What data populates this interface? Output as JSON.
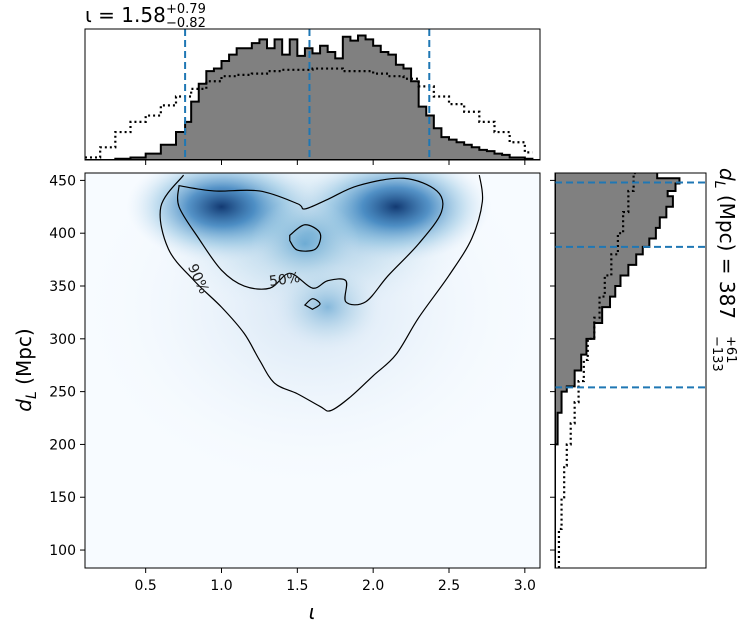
{
  "chart_data": {
    "type": "corner-plot",
    "colors": {
      "fill": "#808080",
      "dashed": "#1f77b4",
      "density": "#08306b",
      "outline": "#000000"
    },
    "top_panel": {
      "title": {
        "symbol": "ι",
        "eq": " = ",
        "value": "1.58",
        "upper": "+0.79",
        "lower": "−0.82"
      },
      "xlim": [
        0.1,
        3.1
      ],
      "quantiles": [
        0.76,
        1.58,
        2.37
      ],
      "hist_filled": [
        [
          0.1,
          0.0
        ],
        [
          0.2,
          0.0
        ],
        [
          0.3,
          0.01
        ],
        [
          0.4,
          0.02
        ],
        [
          0.5,
          0.05
        ],
        [
          0.6,
          0.12
        ],
        [
          0.7,
          0.22
        ],
        [
          0.76,
          0.3
        ],
        [
          0.8,
          0.46
        ],
        [
          0.85,
          0.6
        ],
        [
          0.9,
          0.7
        ],
        [
          0.95,
          0.72
        ],
        [
          1.0,
          0.78
        ],
        [
          1.05,
          0.83
        ],
        [
          1.1,
          0.88
        ],
        [
          1.15,
          0.88
        ],
        [
          1.2,
          0.92
        ],
        [
          1.25,
          0.95
        ],
        [
          1.3,
          0.88
        ],
        [
          1.35,
          0.95
        ],
        [
          1.4,
          0.83
        ],
        [
          1.45,
          0.95
        ],
        [
          1.5,
          0.82
        ],
        [
          1.55,
          0.88
        ],
        [
          1.6,
          0.84
        ],
        [
          1.65,
          0.9
        ],
        [
          1.7,
          0.85
        ],
        [
          1.75,
          0.8
        ],
        [
          1.8,
          0.97
        ],
        [
          1.85,
          0.94
        ],
        [
          1.9,
          0.98
        ],
        [
          1.95,
          0.95
        ],
        [
          2.0,
          0.9
        ],
        [
          2.05,
          0.85
        ],
        [
          2.1,
          0.83
        ],
        [
          2.15,
          0.75
        ],
        [
          2.2,
          0.72
        ],
        [
          2.25,
          0.62
        ],
        [
          2.3,
          0.42
        ],
        [
          2.35,
          0.35
        ],
        [
          2.4,
          0.25
        ],
        [
          2.45,
          0.18
        ],
        [
          2.5,
          0.16
        ],
        [
          2.55,
          0.14
        ],
        [
          2.6,
          0.12
        ],
        [
          2.65,
          0.1
        ],
        [
          2.7,
          0.08
        ],
        [
          2.75,
          0.07
        ],
        [
          2.8,
          0.05
        ],
        [
          2.85,
          0.04
        ],
        [
          2.9,
          0.02
        ],
        [
          2.95,
          0.02
        ],
        [
          3.0,
          0.01
        ],
        [
          3.05,
          0.0
        ]
      ],
      "hist_dotted": [
        [
          0.1,
          0.02
        ],
        [
          0.2,
          0.1
        ],
        [
          0.3,
          0.22
        ],
        [
          0.4,
          0.3
        ],
        [
          0.5,
          0.35
        ],
        [
          0.6,
          0.43
        ],
        [
          0.7,
          0.5
        ],
        [
          0.8,
          0.56
        ],
        [
          0.9,
          0.62
        ],
        [
          1.0,
          0.66
        ],
        [
          1.1,
          0.67
        ],
        [
          1.2,
          0.68
        ],
        [
          1.3,
          0.7
        ],
        [
          1.4,
          0.71
        ],
        [
          1.5,
          0.71
        ],
        [
          1.6,
          0.72
        ],
        [
          1.7,
          0.72
        ],
        [
          1.8,
          0.7
        ],
        [
          1.9,
          0.7
        ],
        [
          2.0,
          0.68
        ],
        [
          2.1,
          0.66
        ],
        [
          2.2,
          0.64
        ],
        [
          2.3,
          0.58
        ],
        [
          2.4,
          0.5
        ],
        [
          2.5,
          0.44
        ],
        [
          2.6,
          0.38
        ],
        [
          2.7,
          0.3
        ],
        [
          2.8,
          0.22
        ],
        [
          2.9,
          0.14
        ],
        [
          3.0,
          0.06
        ]
      ]
    },
    "main_panel": {
      "xlabel": "ι",
      "ylabel": "d_L (Mpc)",
      "xlim": [
        0.1,
        3.1
      ],
      "ylim": [
        83,
        457
      ],
      "xticks": [
        "0.5",
        "1.0",
        "1.5",
        "2.0",
        "2.5",
        "3.0"
      ],
      "yticks": [
        "100",
        "150",
        "200",
        "250",
        "300",
        "350",
        "400",
        "450"
      ],
      "contour_labels": [
        "90%",
        "50%"
      ],
      "density_peaks": [
        {
          "x": 1.0,
          "y": 425,
          "weight": 1.0
        },
        {
          "x": 2.15,
          "y": 425,
          "weight": 1.0
        },
        {
          "x": 1.55,
          "y": 390,
          "weight": 0.45
        },
        {
          "x": 1.7,
          "y": 330,
          "weight": 0.35
        }
      ],
      "contour_90": [
        [
          0.75,
          455
        ],
        [
          0.6,
          425
        ],
        [
          0.65,
          385
        ],
        [
          0.82,
          355
        ],
        [
          1.0,
          330
        ],
        [
          1.15,
          305
        ],
        [
          1.25,
          280
        ],
        [
          1.35,
          258
        ],
        [
          1.5,
          248
        ],
        [
          1.65,
          236
        ],
        [
          1.72,
          232
        ],
        [
          1.85,
          245
        ],
        [
          2.0,
          265
        ],
        [
          2.15,
          285
        ],
        [
          2.3,
          320
        ],
        [
          2.5,
          360
        ],
        [
          2.65,
          395
        ],
        [
          2.72,
          430
        ],
        [
          2.7,
          455
        ]
      ],
      "contour_50": [
        [
          0.72,
          445
        ],
        [
          0.95,
          440
        ],
        [
          1.25,
          440
        ],
        [
          1.5,
          428
        ],
        [
          1.55,
          423
        ],
        [
          1.7,
          432
        ],
        [
          1.9,
          445
        ],
        [
          2.2,
          452
        ],
        [
          2.42,
          440
        ],
        [
          2.45,
          420
        ],
        [
          2.3,
          390
        ],
        [
          2.1,
          360
        ],
        [
          1.95,
          335
        ],
        [
          1.82,
          335
        ],
        [
          1.82,
          355
        ],
        [
          1.7,
          355
        ],
        [
          1.6,
          348
        ],
        [
          1.45,
          362
        ],
        [
          1.32,
          348
        ],
        [
          1.15,
          350
        ],
        [
          1.0,
          365
        ],
        [
          0.85,
          395
        ],
        [
          0.72,
          425
        ],
        [
          0.72,
          445
        ]
      ],
      "contour_island_1": [
        [
          1.45,
          398
        ],
        [
          1.55,
          408
        ],
        [
          1.65,
          400
        ],
        [
          1.62,
          385
        ],
        [
          1.5,
          384
        ],
        [
          1.45,
          393
        ]
      ],
      "contour_island_2": [
        [
          1.55,
          332
        ],
        [
          1.6,
          338
        ],
        [
          1.65,
          333
        ],
        [
          1.6,
          328
        ]
      ]
    },
    "right_panel": {
      "title": {
        "symbol": "d_L (Mpc)",
        "eq": " = ",
        "value": "387",
        "upper": "+61",
        "lower": "−133"
      },
      "ylim": [
        83,
        457
      ],
      "quantiles": [
        254,
        387,
        448
      ],
      "hist_filled": [
        [
          83,
          0.0
        ],
        [
          150,
          0.0
        ],
        [
          200,
          0.02
        ],
        [
          230,
          0.05
        ],
        [
          250,
          0.09
        ],
        [
          255,
          0.15
        ],
        [
          270,
          0.2
        ],
        [
          285,
          0.24
        ],
        [
          300,
          0.3
        ],
        [
          315,
          0.36
        ],
        [
          330,
          0.42
        ],
        [
          340,
          0.46
        ],
        [
          350,
          0.5
        ],
        [
          360,
          0.56
        ],
        [
          370,
          0.62
        ],
        [
          380,
          0.67
        ],
        [
          387,
          0.72
        ],
        [
          395,
          0.77
        ],
        [
          405,
          0.8
        ],
        [
          415,
          0.85
        ],
        [
          425,
          0.9
        ],
        [
          435,
          0.86
        ],
        [
          440,
          0.92
        ],
        [
          447,
          0.95
        ],
        [
          452,
          0.78
        ],
        [
          457,
          0.78
        ]
      ],
      "hist_dotted": [
        [
          83,
          0.03
        ],
        [
          120,
          0.05
        ],
        [
          150,
          0.07
        ],
        [
          180,
          0.09
        ],
        [
          200,
          0.12
        ],
        [
          220,
          0.15
        ],
        [
          240,
          0.18
        ],
        [
          260,
          0.22
        ],
        [
          280,
          0.25
        ],
        [
          300,
          0.3
        ],
        [
          320,
          0.34
        ],
        [
          340,
          0.38
        ],
        [
          360,
          0.43
        ],
        [
          380,
          0.48
        ],
        [
          400,
          0.52
        ],
        [
          420,
          0.56
        ],
        [
          440,
          0.6
        ],
        [
          457,
          0.62
        ]
      ]
    }
  }
}
